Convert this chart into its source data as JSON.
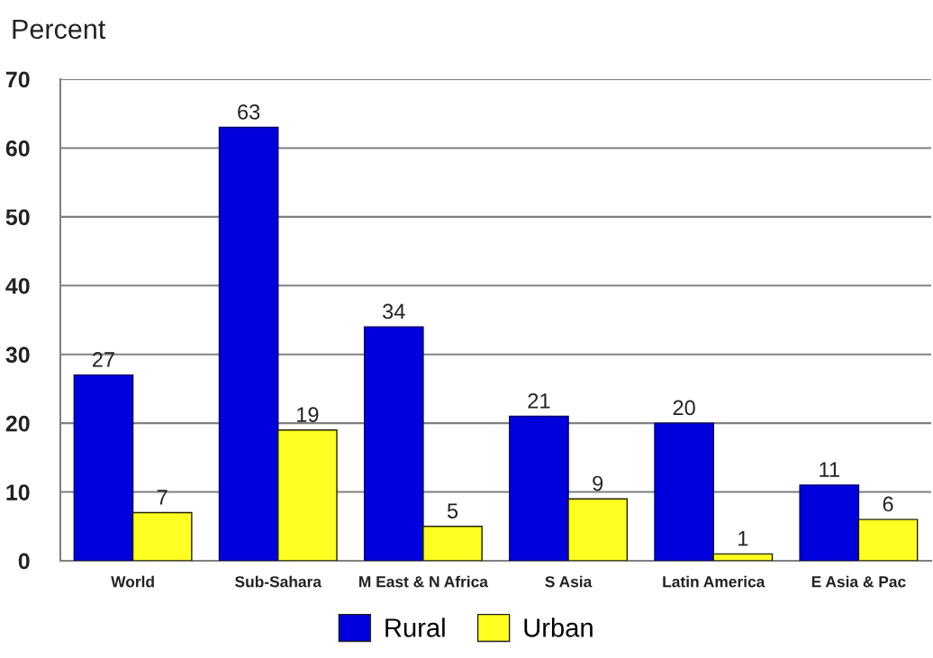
{
  "chart_data": {
    "type": "bar",
    "ylabel": "Percent",
    "categories": [
      "World",
      "Sub-Sahara",
      "M East & N Africa",
      "S Asia",
      "Latin America",
      "E Asia & Pac"
    ],
    "series": [
      {
        "name": "Rural",
        "color": "#0000dd",
        "values": [
          27,
          63,
          34,
          21,
          20,
          11
        ]
      },
      {
        "name": "Urban",
        "color": "#ffff22",
        "values": [
          7,
          19,
          5,
          9,
          1,
          6
        ]
      }
    ],
    "ylim": [
      0,
      70
    ],
    "yticks": [
      0,
      10,
      20,
      30,
      40,
      50,
      60,
      70
    ],
    "grid": "y",
    "legend": "bottom",
    "data_labels": true
  }
}
